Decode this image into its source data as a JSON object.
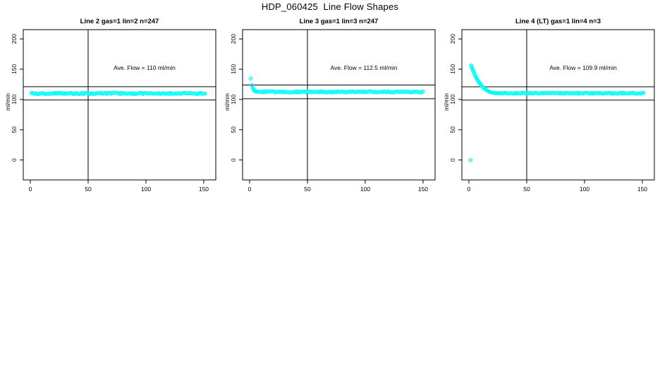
{
  "page": {
    "background": "#ffffff"
  },
  "chart_data": {
    "type": "scatter",
    "title": "HDP_060425  Line Flow Shapes",
    "point_color": "#00FFFF",
    "axis_color": "#000000",
    "axes": {
      "xticks": [
        0,
        50,
        100,
        150
      ],
      "yticks": [
        0,
        50,
        100,
        150,
        200
      ],
      "xlim": [
        -6.1,
        160.4
      ],
      "ylim": [
        -32.9,
        215.3
      ],
      "ylabel": "ml/min",
      "grid": false,
      "legend": "none"
    },
    "subplots": [
      {
        "name": "line-2",
        "title": "Line 2 gas=1 lin=2 n=247",
        "n_points": 247,
        "ave_flow": 110,
        "annotation": "Ave. Flow =  110  ml/min",
        "vline_x": 50,
        "hlines": [
          121.0,
          99.0
        ],
        "points": [],
        "flat_segments": [
          {
            "x_start": 1,
            "x_end": 151,
            "step": 1.25,
            "value": 110,
            "jitter": 1.1
          }
        ]
      },
      {
        "name": "line-3",
        "title": "Line 3 gas=1 lin=3 n=247",
        "n_points": 247,
        "ave_flow": 112.5,
        "annotation": "Ave. Flow =  112.5  ml/min",
        "vline_x": 50,
        "hlines": [
          123.8,
          101.3
        ],
        "points": [
          [
            1,
            134.5
          ],
          [
            2,
            123.5
          ],
          [
            2.6,
            119.8
          ],
          [
            3.2,
            117.2
          ],
          [
            3.8,
            115.3
          ],
          [
            4.4,
            114.0
          ],
          [
            5.0,
            113.2
          ],
          [
            5.6,
            112.8
          ]
        ],
        "flat_segments": [
          {
            "x_start": 6.2,
            "x_end": 151,
            "step": 1.25,
            "value": 112.5,
            "jitter": 1.0
          }
        ]
      },
      {
        "name": "line-4-lt",
        "title": "Line 4 (LT) gas=1 lin=4 n=3",
        "n_points": 3,
        "ave_flow": 109.9,
        "annotation": "Ave. Flow =  109.9  ml/min",
        "vline_x": 50,
        "hlines": [
          120.9,
          98.9
        ],
        "points": [
          [
            1.5,
            0
          ],
          [
            2,
            156.0
          ],
          [
            2.5,
            153.4
          ],
          [
            3,
            151.0
          ],
          [
            3.5,
            148.6
          ],
          [
            4,
            146.2
          ],
          [
            4.5,
            143.9
          ],
          [
            5,
            141.7
          ],
          [
            5.5,
            139.6
          ],
          [
            6,
            137.6
          ],
          [
            6.5,
            135.7
          ],
          [
            7,
            133.9
          ],
          [
            7.5,
            132.2
          ],
          [
            8,
            130.6
          ],
          [
            8.5,
            129.1
          ],
          [
            9,
            127.6
          ],
          [
            9.5,
            126.2
          ],
          [
            10,
            124.9
          ],
          [
            10.75,
            123.1
          ],
          [
            11.5,
            121.5
          ],
          [
            12.25,
            120.0
          ],
          [
            13,
            118.7
          ],
          [
            13.75,
            117.5
          ],
          [
            14.5,
            116.4
          ],
          [
            15.25,
            115.4
          ],
          [
            16,
            114.5
          ],
          [
            17,
            113.5
          ],
          [
            18,
            112.6
          ],
          [
            19,
            111.9
          ],
          [
            20,
            111.3
          ],
          [
            21,
            110.9
          ],
          [
            22,
            110.7
          ],
          [
            23,
            110.5
          ],
          [
            24,
            110.4
          ],
          [
            25,
            110.4
          ]
        ],
        "flat_segments": [
          {
            "x_start": 26,
            "x_end": 151,
            "step": 1.25,
            "value": 110.3,
            "jitter": 0.9
          }
        ]
      }
    ]
  }
}
